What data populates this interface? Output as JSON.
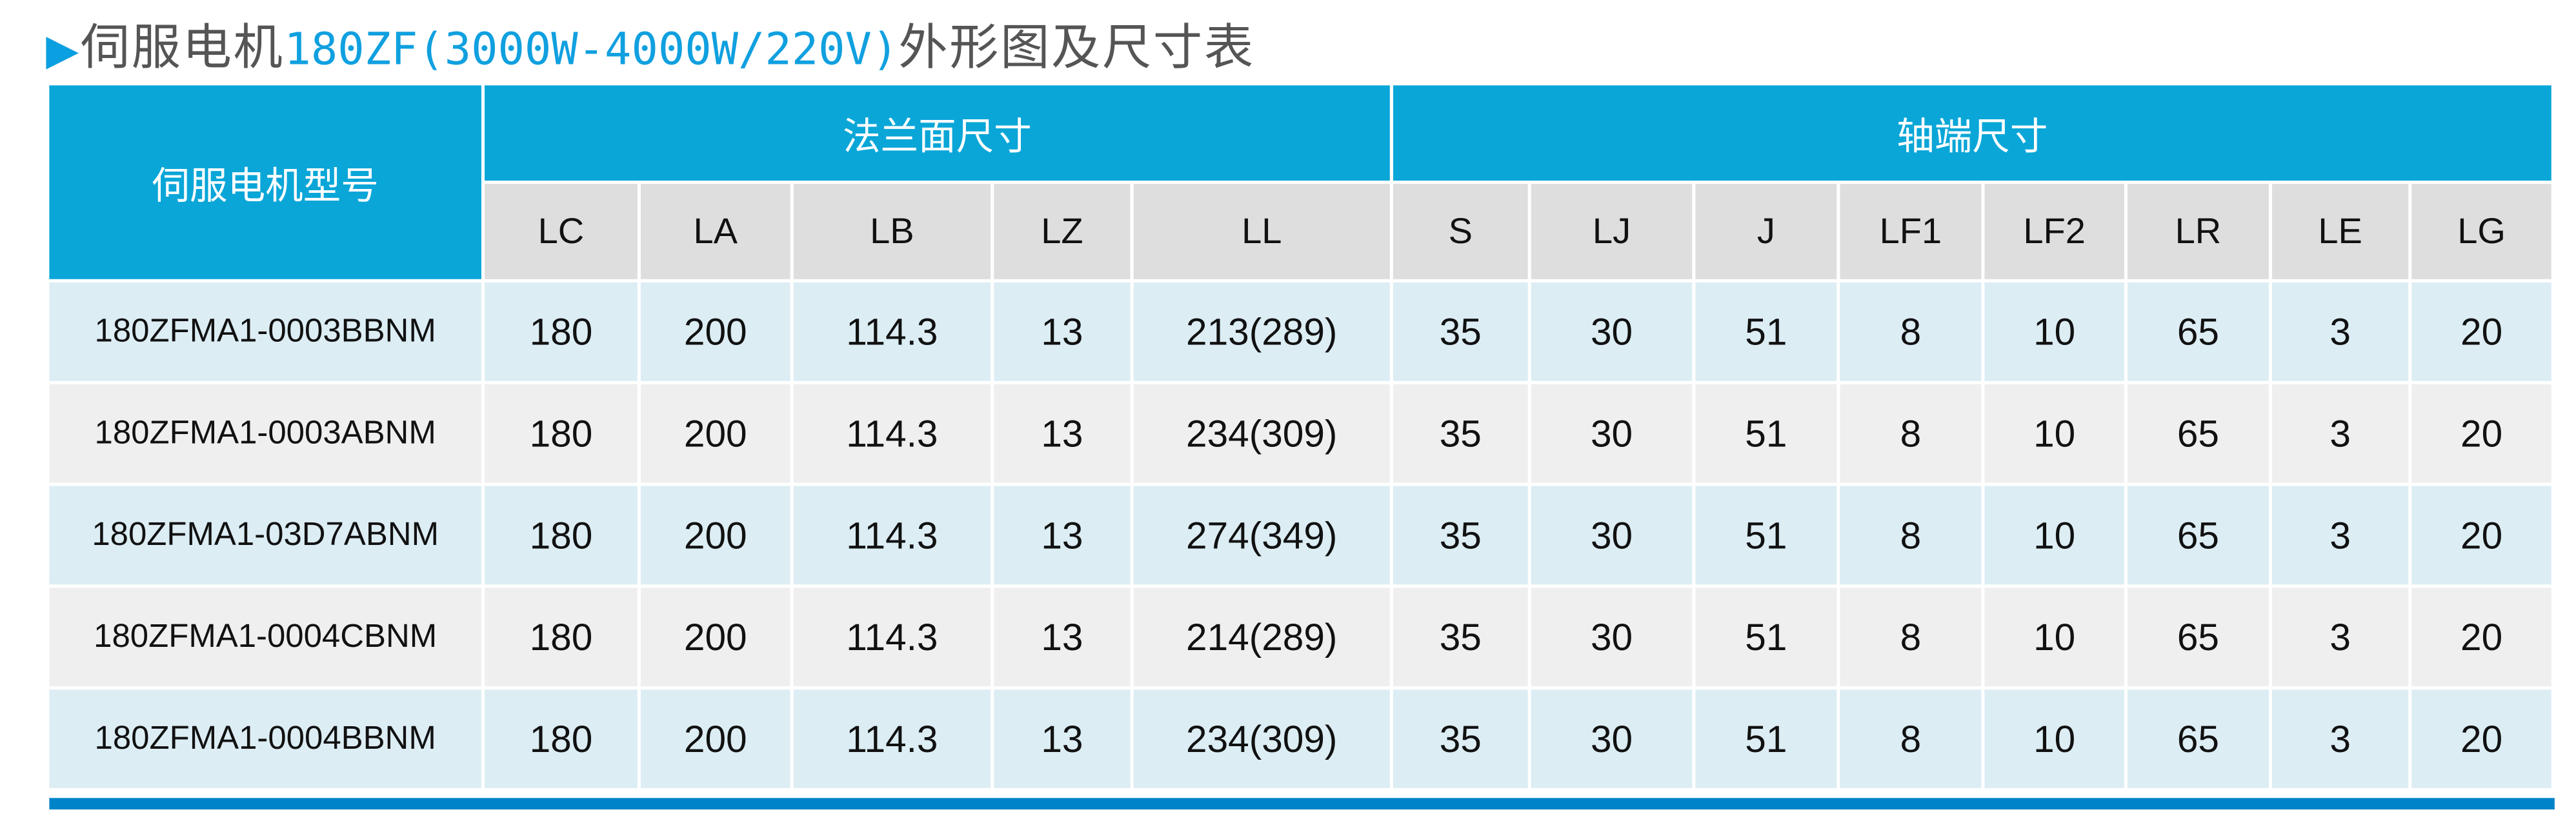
{
  "title": {
    "arrow_icon": "triangle-right",
    "prefix": "伺服电机",
    "highlight": "180ZF(3000W-4000W/220V)",
    "suffix": "外形图及尺寸表"
  },
  "colors": {
    "header_blue": "#0aa6d8",
    "bottom_bar": "#0083c9",
    "title_highlight": "#10a0df"
  },
  "table": {
    "model_header": "伺服电机型号",
    "groups": [
      "法兰面尺寸",
      "轴端尺寸"
    ],
    "columns": [
      "LC",
      "LA",
      "LB",
      "LZ",
      "LL",
      "S",
      "LJ",
      "J",
      "LF1",
      "LF2",
      "LR",
      "LE",
      "LG"
    ],
    "rows": [
      [
        "180ZFMA1-0003BBNM",
        "180",
        "200",
        "114.3",
        "13",
        "213(289)",
        "35",
        "30",
        "51",
        "8",
        "10",
        "65",
        "3",
        "20"
      ],
      [
        "180ZFMA1-0003ABNM",
        "180",
        "200",
        "114.3",
        "13",
        "234(309)",
        "35",
        "30",
        "51",
        "8",
        "10",
        "65",
        "3",
        "20"
      ],
      [
        "180ZFMA1-03D7ABNM",
        "180",
        "200",
        "114.3",
        "13",
        "274(349)",
        "35",
        "30",
        "51",
        "8",
        "10",
        "65",
        "3",
        "20"
      ],
      [
        "180ZFMA1-0004CBNM",
        "180",
        "200",
        "114.3",
        "13",
        "214(289)",
        "35",
        "30",
        "51",
        "8",
        "10",
        "65",
        "3",
        "20"
      ],
      [
        "180ZFMA1-0004BBNM",
        "180",
        "200",
        "114.3",
        "13",
        "234(309)",
        "35",
        "30",
        "51",
        "8",
        "10",
        "65",
        "3",
        "20"
      ]
    ]
  }
}
